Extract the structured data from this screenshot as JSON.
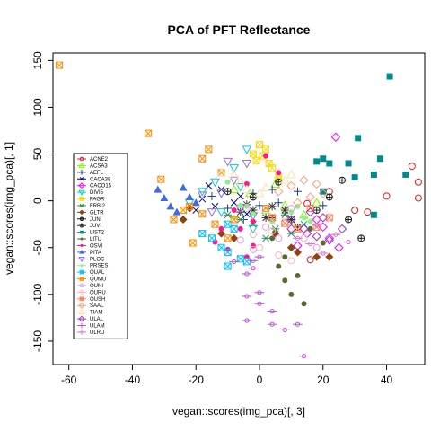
{
  "chart_data": {
    "type": "scatter",
    "title": "PCA of PFT Reflectance",
    "xlabel": "vegan::scores(img_pca)[, 3]",
    "ylabel": "vegan::scores(img_pca)[, 1]",
    "xlim": [
      -65,
      52
    ],
    "ylim": [
      -175,
      158
    ],
    "xticks": [
      "-60",
      "-40",
      "-20",
      "0",
      "20",
      "40"
    ],
    "xtick_values": [
      -60,
      -40,
      -20,
      0,
      20,
      40
    ],
    "yticks": [
      "-150",
      "-100",
      "-50",
      "0",
      "50",
      "100",
      "150"
    ],
    "ytick_values": [
      -150,
      -100,
      -50,
      0,
      50,
      100,
      150
    ],
    "grid": false,
    "legend_position": "left-middle",
    "series": [
      {
        "name": "ACNE2",
        "color": "#E41A1C",
        "symbol": "circle-open",
        "points": [
          [
            22,
            10
          ],
          [
            30,
            -10
          ],
          [
            34,
            -12
          ],
          [
            40,
            5
          ],
          [
            48,
            37
          ],
          [
            50,
            20
          ],
          [
            50,
            3
          ],
          [
            15,
            -3
          ],
          [
            16,
            -63
          ]
        ]
      },
      {
        "name": "ACSA3",
        "color": "#7CFC00",
        "symbol": "triangle-open",
        "points": [
          [
            5,
            18
          ],
          [
            8,
            -5
          ],
          [
            10,
            -22
          ],
          [
            2,
            -10
          ],
          [
            -3,
            8
          ],
          [
            14,
            -15
          ],
          [
            6,
            25
          ],
          [
            -8,
            12
          ],
          [
            18,
            -2
          ]
        ]
      },
      {
        "name": "AEFL",
        "color": "#1B3A8C",
        "symbol": "plus",
        "points": [
          [
            -2,
            8
          ],
          [
            -10,
            -8
          ],
          [
            -5,
            -20
          ],
          [
            0,
            -5
          ],
          [
            6,
            -2
          ],
          [
            12,
            10
          ],
          [
            -15,
            5
          ],
          [
            4,
            12
          ],
          [
            20,
            -5
          ]
        ]
      },
      {
        "name": "CACA38",
        "color": "#00008B",
        "symbol": "x",
        "points": [
          [
            -12,
            12
          ],
          [
            -8,
            -2
          ],
          [
            -18,
            2
          ],
          [
            -14,
            -6
          ],
          [
            -6,
            5
          ],
          [
            -20,
            -10
          ],
          [
            -4,
            -14
          ],
          [
            -16,
            16
          ]
        ]
      },
      {
        "name": "CACO15",
        "color": "#FF00FF",
        "symbol": "diamond-open",
        "points": [
          [
            15,
            -35
          ],
          [
            20,
            -28
          ],
          [
            22,
            -40
          ],
          [
            25,
            -50
          ],
          [
            12,
            -48
          ],
          [
            10,
            -30
          ],
          [
            24,
            68
          ],
          [
            18,
            -20
          ]
        ]
      },
      {
        "name": "DIVI5",
        "color": "#00CED1",
        "symbol": "triangle-down-open",
        "points": [
          [
            -18,
            10
          ],
          [
            -4,
            55
          ],
          [
            -8,
            35
          ],
          [
            -22,
            -2
          ],
          [
            -14,
            20
          ],
          [
            -6,
            15
          ],
          [
            -12,
            -12
          ],
          [
            -2,
            -30
          ]
        ]
      },
      {
        "name": "FAGR",
        "color": "#FFD700",
        "symbol": "square-open",
        "points": [
          [
            -2,
            50
          ],
          [
            0,
            60
          ],
          [
            2,
            55
          ],
          [
            1,
            48
          ],
          [
            3,
            40
          ],
          [
            -1,
            43
          ],
          [
            4,
            35
          ],
          [
            6,
            25
          ]
        ]
      },
      {
        "name": "FRBI2",
        "color": "#2E8B57",
        "symbol": "asterisk",
        "points": [
          [
            -6,
            -20
          ],
          [
            -2,
            -25
          ],
          [
            5,
            -30
          ],
          [
            8,
            -15
          ],
          [
            10,
            -35
          ],
          [
            2,
            -40
          ],
          [
            14,
            -25
          ],
          [
            -10,
            -15
          ]
        ]
      },
      {
        "name": "GLTR",
        "color": "#8B4513",
        "symbol": "diamond-filled",
        "points": [
          [
            -22,
            -8
          ],
          [
            -24,
            -20
          ],
          [
            -12,
            -35
          ],
          [
            -8,
            -40
          ],
          [
            5,
            -35
          ],
          [
            10,
            -50
          ],
          [
            12,
            -55
          ],
          [
            18,
            -60
          ],
          [
            22,
            -60
          ]
        ]
      },
      {
        "name": "JUNI",
        "color": "#1F1F1F",
        "symbol": "circle-plus",
        "points": [
          [
            -2,
            4
          ],
          [
            4,
            -18
          ],
          [
            12,
            -28
          ],
          [
            18,
            -10
          ],
          [
            22,
            4
          ],
          [
            26,
            22
          ],
          [
            28,
            -20
          ],
          [
            32,
            -40
          ],
          [
            -10,
            10
          ],
          [
            6,
            20
          ]
        ]
      },
      {
        "name": "JUVI",
        "color": "#333333",
        "symbol": "star",
        "points": [
          [
            -6,
            -12
          ],
          [
            -2,
            -10
          ],
          [
            4,
            -6
          ],
          [
            10,
            -20
          ],
          [
            2,
            -18
          ],
          [
            -4,
            -4
          ],
          [
            8,
            -10
          ]
        ]
      },
      {
        "name": "LIST2",
        "color": "#008B8B",
        "symbol": "square-filled",
        "points": [
          [
            41,
            133
          ],
          [
            31,
            67
          ],
          [
            38,
            45
          ],
          [
            46,
            28
          ],
          [
            28,
            40
          ],
          [
            22,
            40
          ],
          [
            20,
            45
          ],
          [
            18,
            42
          ],
          [
            36,
            28
          ],
          [
            30,
            25
          ],
          [
            36,
            -15
          ],
          [
            20,
            10
          ]
        ]
      },
      {
        "name": "LITU",
        "color": "#556B2F",
        "symbol": "circle-filled",
        "points": [
          [
            4,
            -40
          ],
          [
            8,
            -60
          ],
          [
            12,
            -80
          ],
          [
            10,
            -100
          ],
          [
            14,
            -110
          ],
          [
            6,
            -70
          ],
          [
            8,
            -85
          ],
          [
            16,
            -30
          ],
          [
            20,
            -45
          ]
        ]
      },
      {
        "name": "OSVI",
        "color": "#FF1493",
        "symbol": "circle-filled",
        "points": [
          [
            -4,
            18
          ],
          [
            -8,
            -10
          ],
          [
            -12,
            -30
          ],
          [
            -2,
            -22
          ],
          [
            -6,
            -30
          ],
          [
            -14,
            -44
          ],
          [
            -10,
            -52
          ],
          [
            -4,
            -60
          ],
          [
            -2,
            -48
          ],
          [
            2,
            48
          ],
          [
            6,
            30
          ]
        ]
      },
      {
        "name": "PITA",
        "color": "#4169E1",
        "symbol": "triangle-filled",
        "points": [
          [
            -32,
            12
          ],
          [
            -30,
            3
          ],
          [
            -28,
            -6
          ],
          [
            -24,
            14
          ],
          [
            -22,
            4
          ],
          [
            -26,
            -12
          ],
          [
            -20,
            -2
          ]
        ]
      },
      {
        "name": "PLOC",
        "color": "#9370DB",
        "symbol": "triangle-down-open",
        "points": [
          [
            -10,
            42
          ],
          [
            -4,
            40
          ],
          [
            -8,
            22
          ],
          [
            -12,
            8
          ],
          [
            -18,
            6
          ],
          [
            -6,
            -8
          ],
          [
            -15,
            -12
          ],
          [
            -2,
            -16
          ]
        ]
      },
      {
        "name": "PRSES",
        "color": "#90EE90",
        "symbol": "circle-filled",
        "points": [
          [
            -10,
            20
          ],
          [
            -6,
            -5
          ],
          [
            -8,
            -18
          ],
          [
            -4,
            -6
          ],
          [
            -2,
            -14
          ],
          [
            4,
            -22
          ],
          [
            10,
            -12
          ],
          [
            12,
            -6
          ],
          [
            14,
            -18
          ],
          [
            16,
            -22
          ]
        ]
      },
      {
        "name": "QUAL",
        "color": "#00BFFF",
        "symbol": "square-open",
        "points": [
          [
            -18,
            -35
          ],
          [
            -15,
            -40
          ],
          [
            -10,
            -25
          ],
          [
            -8,
            -30
          ],
          [
            -12,
            -50
          ],
          [
            -10,
            -55
          ],
          [
            -6,
            -62
          ],
          [
            -4,
            -65
          ],
          [
            -10,
            -70
          ]
        ]
      },
      {
        "name": "QUMU",
        "color": "#FF8C00",
        "symbol": "square-open",
        "points": [
          [
            -63,
            145
          ],
          [
            -35,
            72
          ],
          [
            -31,
            23
          ],
          [
            -27,
            -20
          ],
          [
            -24,
            -10
          ],
          [
            -21,
            -45
          ],
          [
            -18,
            45
          ],
          [
            -16,
            55
          ],
          [
            -14,
            -25
          ],
          [
            -12,
            30
          ],
          [
            -10,
            -40
          ],
          [
            -8,
            -20
          ],
          [
            -22,
            -6
          ],
          [
            -18,
            -14
          ]
        ]
      },
      {
        "name": "QUNI",
        "color": "#DDA0DD",
        "symbol": "circle-open",
        "points": [
          [
            -4,
            -8
          ],
          [
            -6,
            -42
          ],
          [
            -2,
            -52
          ],
          [
            2,
            -28
          ],
          [
            6,
            -40
          ],
          [
            10,
            -8
          ],
          [
            14,
            -40
          ],
          [
            18,
            -50
          ]
        ]
      },
      {
        "name": "QURU",
        "color": "#FFB6C1",
        "symbol": "circle-open",
        "points": [
          [
            -2,
            -36
          ],
          [
            0,
            -50
          ],
          [
            6,
            -58
          ],
          [
            10,
            -64
          ],
          [
            14,
            -40
          ],
          [
            8,
            -22
          ],
          [
            4,
            -32
          ]
        ]
      },
      {
        "name": "QUSH",
        "color": "#FF7F50",
        "symbol": "square-open",
        "points": [
          [
            2,
            -8
          ],
          [
            4,
            -18
          ],
          [
            8,
            -24
          ],
          [
            12,
            -30
          ],
          [
            16,
            -8
          ],
          [
            18,
            -28
          ],
          [
            22,
            -18
          ]
        ]
      },
      {
        "name": "SAAL",
        "color": "#FFA07A",
        "symbol": "diamond-open",
        "points": [
          [
            6,
            10
          ],
          [
            10,
            16
          ],
          [
            14,
            22
          ],
          [
            18,
            18
          ],
          [
            16,
            4
          ],
          [
            12,
            -2
          ],
          [
            20,
            8
          ]
        ]
      },
      {
        "name": "TIAM",
        "color": "#FFDEAD",
        "symbol": "triangle-open",
        "points": [
          [
            -12,
            30
          ],
          [
            -8,
            28
          ],
          [
            -6,
            20
          ],
          [
            -4,
            12
          ],
          [
            0,
            8
          ],
          [
            2,
            14
          ],
          [
            8,
            22
          ],
          [
            10,
            28
          ]
        ]
      },
      {
        "name": "ULAL",
        "color": "#9932CC",
        "symbol": "diamond-open",
        "points": [
          [
            10,
            -20
          ],
          [
            14,
            -30
          ],
          [
            18,
            -38
          ],
          [
            22,
            -42
          ],
          [
            26,
            -30
          ],
          [
            20,
            -18
          ],
          [
            16,
            -12
          ]
        ]
      },
      {
        "name": "ULAM",
        "color": "#BA55D3",
        "symbol": "line",
        "points": [
          [
            0,
            -60
          ],
          [
            -2,
            -64
          ],
          [
            -2,
            -72
          ],
          [
            -4,
            -78
          ],
          [
            0,
            -98
          ],
          [
            -4,
            -102
          ],
          [
            0,
            -110
          ],
          [
            4,
            -118
          ],
          [
            4,
            -132
          ],
          [
            8,
            -138
          ],
          [
            12,
            -132
          ],
          [
            14,
            -166
          ],
          [
            -4,
            -128
          ],
          [
            -8,
            -65
          ]
        ]
      },
      {
        "name": "ULRU",
        "color": "#DA70D6",
        "symbol": "line",
        "points": [
          [
            12,
            -40
          ],
          [
            16,
            -46
          ],
          [
            18,
            -26
          ],
          [
            24,
            -36
          ],
          [
            28,
            -44
          ],
          [
            20,
            -56
          ]
        ]
      }
    ]
  }
}
